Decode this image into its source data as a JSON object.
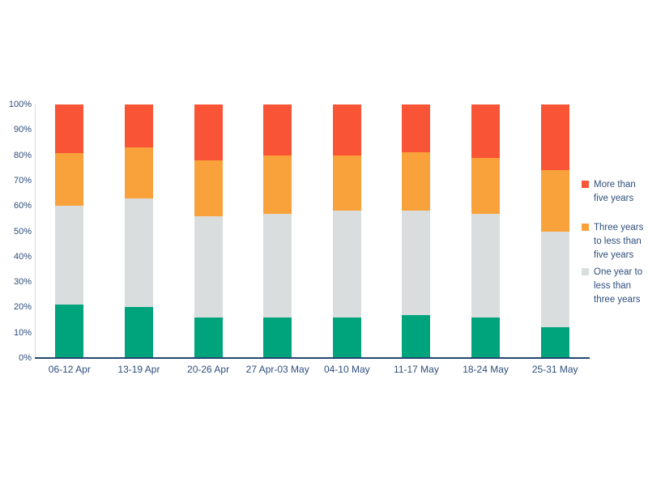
{
  "chart_data": {
    "type": "bar",
    "stacked": true,
    "units": "percent",
    "title": "",
    "xlabel": "",
    "ylabel": "",
    "categories": [
      "06-12 Apr",
      "13-19 Apr",
      "20-26 Apr",
      "27 Apr-03 May",
      "04-10 May",
      "11-17 May",
      "18-24 May",
      "25-31 May"
    ],
    "series": [
      {
        "name": "",
        "legend_visible": false,
        "color": "#00A47C",
        "values": [
          21,
          20,
          16,
          16,
          16,
          17,
          16,
          12
        ]
      },
      {
        "name": "One year to less than three years",
        "legend_visible": true,
        "color": "#DADDDE",
        "values": [
          39,
          43,
          40,
          41,
          42,
          41,
          41,
          38
        ]
      },
      {
        "name": "Three years to less than five years",
        "legend_visible": true,
        "color": "#F9A23C",
        "values": [
          21,
          20,
          22,
          23,
          22,
          23,
          22,
          24
        ]
      },
      {
        "name": "More than five years",
        "legend_visible": true,
        "color": "#FA5436",
        "values": [
          19,
          17,
          22,
          20,
          20,
          19,
          21,
          26
        ]
      }
    ],
    "ylim": [
      0,
      100
    ],
    "yticks": [
      "0%",
      "10%",
      "20%",
      "30%",
      "40%",
      "50%",
      "60%",
      "70%",
      "80%",
      "90%",
      "100%"
    ],
    "grid": false,
    "legend_position": "right"
  },
  "style": {
    "label_color": "#2E4E7C",
    "baseline_color": "#24466E",
    "axis_line_color": "#D9D9D9",
    "background": "#FFFFFF"
  }
}
